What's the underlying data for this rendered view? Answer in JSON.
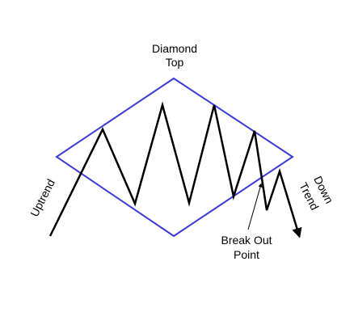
{
  "diagram": {
    "title_line1": "Diamond",
    "title_line2": "Top",
    "uptrend_label": "Uptrend",
    "downtrend_line1": "Down",
    "downtrend_line2": "Trend",
    "breakout_line1": "Break Out",
    "breakout_line2": "Point"
  },
  "colors": {
    "diamond": "#3b3bd6",
    "price_line": "#000000",
    "background": "#ffffff"
  }
}
